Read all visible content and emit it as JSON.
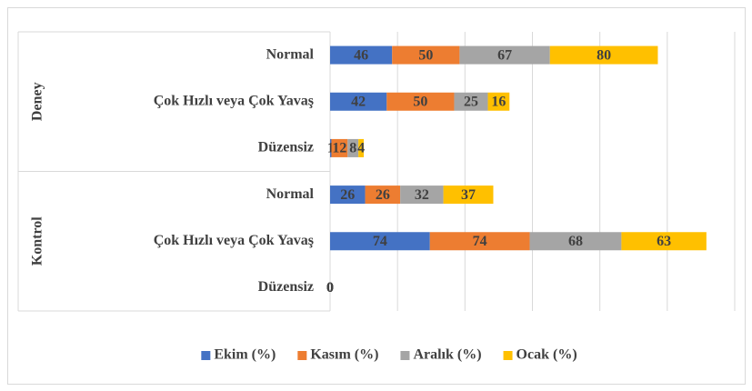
{
  "chart_data": {
    "type": "bar",
    "orientation": "horizontal",
    "stacked": true,
    "groups": [
      {
        "name": "Deney",
        "categories": [
          "Normal",
          "Çok Hızlı veya Çok Yavaş",
          "Düzensiz"
        ]
      },
      {
        "name": "Kontrol",
        "categories": [
          "Normal",
          "Çok Hızlı veya Çok Yavaş",
          "Düzensiz"
        ]
      }
    ],
    "series": [
      {
        "name": "Ekim (%)",
        "color": "#4472c4",
        "values": [
          46,
          42,
          1,
          26,
          74,
          0
        ]
      },
      {
        "name": "Kasım (%)",
        "color": "#ed7d31",
        "values": [
          50,
          50,
          12,
          26,
          74,
          0
        ]
      },
      {
        "name": "Aralık (%)",
        "color": "#a5a5a5",
        "values": [
          67,
          25,
          8,
          32,
          68,
          0
        ]
      },
      {
        "name": "Ocak (%)",
        "color": "#ffc000",
        "values": [
          80,
          16,
          4,
          37,
          63,
          0
        ]
      }
    ],
    "xlim": [
      0,
      300
    ],
    "xticks": [
      0,
      50,
      100,
      150,
      200,
      250,
      300
    ],
    "grid": true,
    "legend": "bottom"
  }
}
